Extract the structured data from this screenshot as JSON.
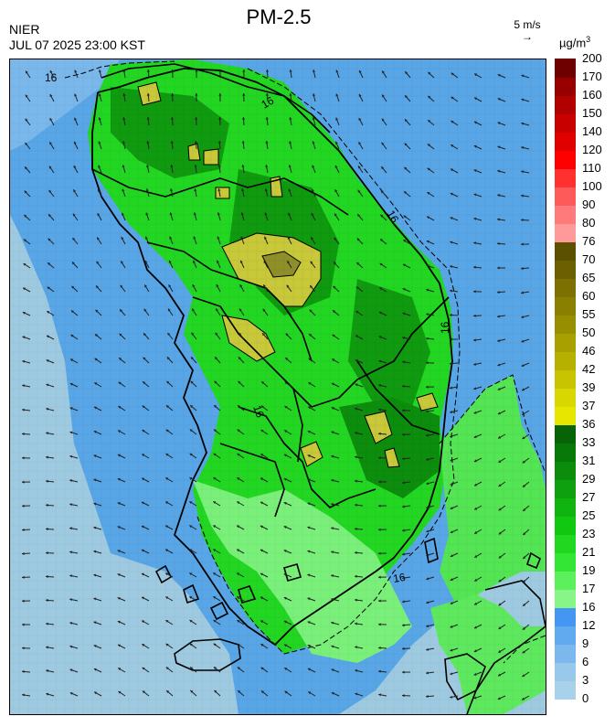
{
  "header": {
    "title": "PM-2.5",
    "agency": "NIER",
    "timestamp": "JUL 07 2025 23:00 KST",
    "wind_reference": "5 m/s",
    "unit_base": "µg/m",
    "unit_exp": "3"
  },
  "map": {
    "contour_labels": [
      "16",
      "16",
      "16",
      "16",
      "16",
      "16"
    ],
    "colors": {
      "sea_low": "#9ecae1",
      "sea_mid": "#58a6e6",
      "land_light": "#7af07a",
      "land_green": "#22d622",
      "land_dark": "#109a10",
      "hotspot": "#c8c83a",
      "hotspot_dark": "#8f8f2a"
    }
  },
  "legend": {
    "values": [
      "0",
      "3",
      "6",
      "9",
      "12",
      "16",
      "17",
      "19",
      "21",
      "23",
      "25",
      "27",
      "29",
      "31",
      "33",
      "36",
      "37",
      "39",
      "42",
      "46",
      "50",
      "55",
      "60",
      "65",
      "70",
      "76",
      "80",
      "90",
      "100",
      "110",
      "120",
      "140",
      "150",
      "160",
      "170",
      "200"
    ],
    "colors": [
      "#a8d2ea",
      "#98c8ea",
      "#7cb8ee",
      "#62aaf0",
      "#4496f2",
      "#88f588",
      "#5df05d",
      "#33e633",
      "#1fd81f",
      "#0fc80f",
      "#10b410",
      "#0ea00e",
      "#0b8c0b",
      "#087808",
      "#066406",
      "#e6e600",
      "#d8d800",
      "#c8c400",
      "#b6b000",
      "#a8a000",
      "#988f00",
      "#8a8000",
      "#7b7000",
      "#6a6000",
      "#5a5000",
      "#ff9a9a",
      "#ff7a7a",
      "#ff5a5a",
      "#ff3030",
      "#ff0000",
      "#e00000",
      "#c80000",
      "#b00000",
      "#980000",
      "#6e0000"
    ]
  }
}
